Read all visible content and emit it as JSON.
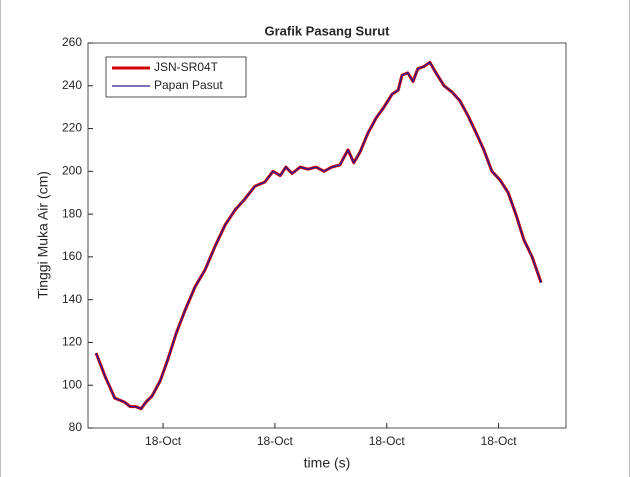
{
  "chart_data": {
    "type": "line",
    "title": "Grafik Pasang Surut",
    "x_label": "time (s)",
    "y_label": "Tinggi Muka Air (cm)",
    "x": [
      1.7,
      3.6,
      5.6,
      7.7,
      8.8,
      10.0,
      11.1,
      12.1,
      13.4,
      15.1,
      16.7,
      18.4,
      20.3,
      22.4,
      24.5,
      26.6,
      28.7,
      30.8,
      32.8,
      34.9,
      37.0,
      38.7,
      40.2,
      41.4,
      42.7,
      44.4,
      46.0,
      47.7,
      49.4,
      51.0,
      52.7,
      54.4,
      55.6,
      56.9,
      58.6,
      60.3,
      61.9,
      63.6,
      64.9,
      65.7,
      66.9,
      68.0,
      69.0,
      70.3,
      71.5,
      72.8,
      74.5,
      76.2,
      77.8,
      79.5,
      81.2,
      82.8,
      84.5,
      86.2,
      87.9,
      89.5,
      91.2,
      92.9,
      94.8
    ],
    "series": [
      {
        "name": "JSN-SR04T",
        "color": "#d40000",
        "values": [
          115,
          104,
          94,
          92,
          90,
          90,
          89,
          92,
          95,
          102,
          112,
          124,
          135,
          146,
          154,
          165,
          175,
          182,
          187,
          193,
          195,
          200,
          198,
          202,
          199,
          202,
          201,
          202,
          200,
          202,
          203,
          210,
          204,
          209,
          218,
          225,
          230,
          236,
          238,
          245,
          246,
          242,
          248,
          249,
          251,
          246,
          240,
          237,
          233,
          226,
          218,
          210,
          200,
          196,
          190,
          180,
          168,
          160,
          148
        ]
      },
      {
        "name": "Papan Pasut",
        "color": "#2b1b8f",
        "values": [
          115,
          104,
          94,
          92,
          90,
          90,
          89,
          92,
          95,
          102,
          112,
          124,
          135,
          146,
          154,
          165,
          175,
          182,
          187,
          193,
          195,
          200,
          198,
          202,
          199,
          202,
          201,
          202,
          200,
          202,
          203,
          210,
          204,
          209,
          218,
          225,
          230,
          236,
          238,
          245,
          246,
          242,
          248,
          249,
          251,
          246,
          240,
          237,
          233,
          226,
          218,
          210,
          200,
          196,
          190,
          180,
          168,
          160,
          148
        ]
      }
    ],
    "xlim": [
      0,
      100
    ],
    "xticks": [
      {
        "value": 15.7,
        "label": "18-Oct"
      },
      {
        "value": 39.1,
        "label": "18-Oct"
      },
      {
        "value": 62.5,
        "label": "18-Oct"
      },
      {
        "value": 85.9,
        "label": "18-Oct"
      }
    ],
    "ylim": [
      80,
      260
    ],
    "yticks": [
      80,
      100,
      120,
      140,
      160,
      180,
      200,
      220,
      240,
      260
    ],
    "legend": "upper left"
  }
}
